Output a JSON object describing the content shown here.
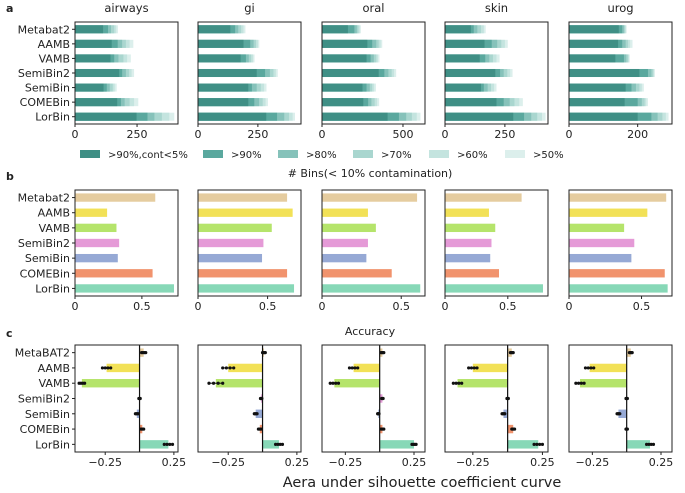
{
  "chart_data": [
    {
      "id": "a",
      "panel_label": "a",
      "type": "bar",
      "orientation": "horizontal",
      "stacked_levels": true,
      "xlabel": "# Bins(< 10% contamination)",
      "categories": [
        "Metabat2",
        "AAMB",
        "VAMB",
        "SemiBin2",
        "SemiBin",
        "COMEBin",
        "LorBin"
      ],
      "levels": [
        ">90%,cont<5%",
        ">90%",
        ">80%",
        ">70%",
        ">60%",
        ">50%"
      ],
      "level_colors": [
        "#3f8f85",
        "#5aa89e",
        "#86c2ba",
        "#a9d6cf",
        "#c4e4df",
        "#dcefec"
      ],
      "legend_position": "below",
      "subplots": [
        {
          "title": "airways",
          "xlim": [
            0,
            415
          ],
          "xticks": [
            0,
            250
          ],
          "values": [
            [
              113,
              133,
              145,
              158,
              166,
              173
            ],
            [
              148,
              172,
              190,
              205,
              220,
              235
            ],
            [
              143,
              158,
              175,
              195,
              210,
              225
            ],
            [
              178,
              190,
              205,
              218,
              228,
              238
            ],
            [
              115,
              128,
              140,
              152,
              160,
              168
            ],
            [
              170,
              185,
              200,
              220,
              238,
              255
            ],
            [
              248,
              292,
              320,
              350,
              380,
              400
            ]
          ]
        },
        {
          "title": "gi",
          "xlim": [
            0,
            430
          ],
          "xticks": [
            0,
            250
          ],
          "values": [
            [
              135,
              155,
              168,
              180,
              190,
              198
            ],
            [
              190,
              218,
              232,
              242,
              250,
              256
            ],
            [
              178,
              200,
              212,
              222,
              230,
              236
            ],
            [
              245,
              280,
              300,
              315,
              325,
              333
            ],
            [
              210,
              225,
              245,
              262,
              276,
              286
            ],
            [
              210,
              235,
              255,
              270,
              282,
              292
            ],
            [
              285,
              330,
              360,
              380,
              395,
              405
            ]
          ]
        },
        {
          "title": "oral",
          "xlim": [
            0,
            636
          ],
          "xticks": [
            0,
            500
          ],
          "values": [
            [
              160,
              200,
              215,
              225,
              233,
              240
            ],
            [
              280,
              310,
              335,
              350,
              362,
              372
            ],
            [
              275,
              300,
              320,
              335,
              345,
              355
            ],
            [
              350,
              385,
              410,
              430,
              445,
              458
            ],
            [
              250,
              275,
              295,
              310,
              322,
              333
            ],
            [
              255,
              285,
              305,
              325,
              340,
              353
            ],
            [
              405,
              475,
              520,
              555,
              585,
              608
            ]
          ]
        },
        {
          "title": "skin",
          "xlim": [
            0,
            430
          ],
          "xticks": [
            0,
            250
          ],
          "values": [
            [
              108,
              120,
              135,
              150,
              162,
              170
            ],
            [
              165,
              195,
              218,
              235,
              250,
              262
            ],
            [
              145,
              168,
              185,
              200,
              215,
              228
            ],
            [
              210,
              230,
              245,
              260,
              272,
              282
            ],
            [
              150,
              162,
              178,
              192,
              205,
              215
            ],
            [
              215,
              245,
              270,
              290,
              310,
              325
            ],
            [
              285,
              330,
              360,
              385,
              405,
              420
            ]
          ]
        },
        {
          "title": "urog",
          "xlim": [
            0,
            300
          ],
          "xticks": [
            0,
            200
          ],
          "values": [
            [
              145,
              155,
              160,
              163,
              166,
              168
            ],
            [
              143,
              155,
              165,
              172,
              178,
              185
            ],
            [
              135,
              160,
              167,
              172,
              175,
              177
            ],
            [
              205,
              230,
              240,
              245,
              248,
              250
            ],
            [
              165,
              182,
              195,
              205,
              212,
              218
            ],
            [
              162,
              200,
              212,
              220,
              225,
              230
            ],
            [
              200,
              240,
              258,
              272,
              282,
              290
            ]
          ]
        }
      ]
    },
    {
      "id": "b",
      "panel_label": "b",
      "type": "bar",
      "orientation": "horizontal",
      "xlabel": "Accuracy",
      "categories": [
        "Metabat2",
        "AAMB",
        "VAMB",
        "SemiBin2",
        "SemiBin",
        "COMEBin",
        "LorBin"
      ],
      "colors": [
        "#e5cc9f",
        "#f2e157",
        "#b5e46b",
        "#e59ad7",
        "#96a9d5",
        "#f1936d",
        "#87d8b7"
      ],
      "subplots": [
        {
          "title": "airways",
          "xlim": [
            0,
            0.77
          ],
          "xticks": [
            0.0,
            0.5
          ],
          "values": [
            0.6,
            0.24,
            0.31,
            0.33,
            0.32,
            0.58,
            0.74
          ]
        },
        {
          "title": "gi",
          "xlim": [
            0,
            0.74
          ],
          "xticks": [
            0.0,
            0.5
          ],
          "values": [
            0.64,
            0.68,
            0.53,
            0.47,
            0.46,
            0.64,
            0.69
          ]
        },
        {
          "title": "oral",
          "xlim": [
            0,
            0.65
          ],
          "xticks": [
            0.0,
            0.5
          ],
          "values": [
            0.6,
            0.29,
            0.34,
            0.29,
            0.28,
            0.44,
            0.62
          ]
        },
        {
          "title": "skin",
          "xlim": [
            0,
            0.82
          ],
          "xticks": [
            0.0,
            0.5
          ],
          "values": [
            0.61,
            0.35,
            0.4,
            0.37,
            0.36,
            0.43,
            0.78
          ]
        },
        {
          "title": "urog",
          "xlim": [
            0,
            0.71
          ],
          "xticks": [
            0.0,
            0.5
          ],
          "values": [
            0.67,
            0.54,
            0.38,
            0.45,
            0.43,
            0.66,
            0.68
          ]
        }
      ]
    },
    {
      "id": "c",
      "panel_label": "c",
      "type": "bar",
      "orientation": "horizontal",
      "xlabel": "Aera under sihouette coefficient curve",
      "categories": [
        "MetaBAT2",
        "AAMB",
        "VAMB",
        "SemiBin2",
        "SemiBin",
        "COMEBin",
        "LorBin"
      ],
      "colors": [
        "#e5cc9f",
        "#f2e157",
        "#b5e46b",
        "#e59ad7",
        "#96a9d5",
        "#f1936d",
        "#87d8b7"
      ],
      "has_error_points": true,
      "subplots": [
        {
          "title": "airways",
          "xlim": [
            -0.47,
            0.28
          ],
          "xticks": [
            -0.25,
            0.25
          ],
          "values": [
            0.03,
            -0.24,
            -0.42,
            0.0,
            -0.02,
            0.02,
            0.21
          ],
          "errors": [
            0.015,
            0.03,
            0.02,
            0.005,
            0.01,
            0.01,
            0.03
          ]
        },
        {
          "title": "gi",
          "xlim": [
            -0.47,
            0.28
          ],
          "xticks": [
            -0.25,
            0.25
          ],
          "values": [
            0.01,
            -0.25,
            -0.34,
            -0.01,
            -0.05,
            -0.02,
            0.12
          ],
          "errors": [
            0.01,
            0.04,
            0.05,
            0.005,
            0.01,
            0.01,
            0.025
          ]
        },
        {
          "title": "oral",
          "xlim": [
            -0.42,
            0.33
          ],
          "xticks": [
            -0.25,
            0.25
          ],
          "values": [
            0.02,
            -0.19,
            -0.33,
            0.02,
            -0.01,
            0.02,
            0.25
          ],
          "errors": [
            0.01,
            0.03,
            0.03,
            0.005,
            0.005,
            0.01,
            0.015
          ]
        },
        {
          "title": "skin",
          "xlim": [
            -0.45,
            0.29
          ],
          "xticks": [
            -0.25,
            0.25
          ],
          "values": [
            0.03,
            -0.25,
            -0.36,
            0.0,
            -0.03,
            0.04,
            0.22
          ],
          "errors": [
            0.01,
            0.03,
            0.03,
            0.005,
            0.01,
            0.01,
            0.03
          ]
        },
        {
          "title": "urog",
          "xlim": [
            -0.42,
            0.33
          ],
          "xticks": [
            -0.25,
            0.25
          ],
          "values": [
            0.03,
            -0.27,
            -0.34,
            0.0,
            -0.06,
            0.0,
            0.17
          ],
          "errors": [
            0.01,
            0.03,
            0.03,
            0.005,
            0.01,
            0.005,
            0.025
          ]
        }
      ]
    }
  ]
}
